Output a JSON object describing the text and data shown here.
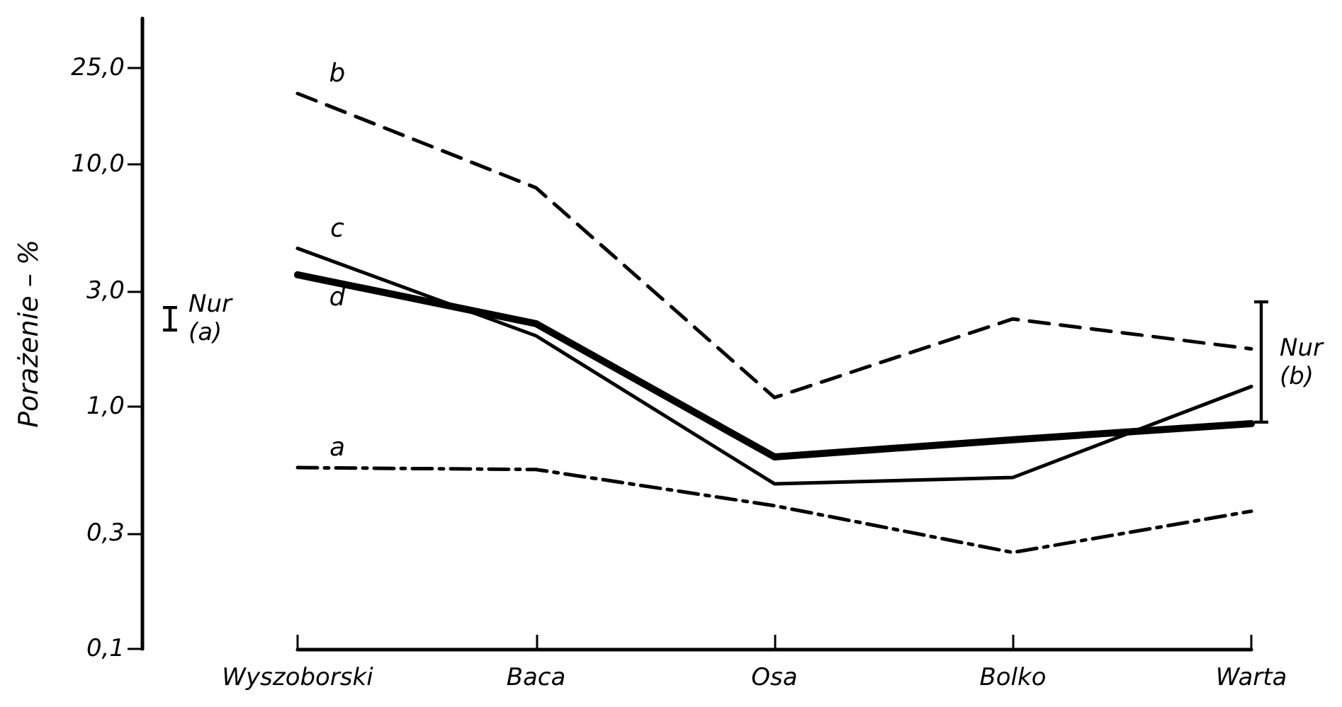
{
  "chart_data": {
    "type": "line",
    "ylabel": "Porażenie – %",
    "categories": [
      "Wyszoborski",
      "Baca",
      "Osa",
      "Bolko",
      "Warta"
    ],
    "series": [
      {
        "name": "a",
        "color": "#000000",
        "line_style": "dotted",
        "values": [
          0.56,
          0.55,
          0.39,
          0.25,
          0.37
        ]
      },
      {
        "name": "b",
        "color": "#000000",
        "line_style": "dashed",
        "values": [
          19.6,
          8.0,
          1.09,
          2.3,
          1.73
        ]
      },
      {
        "name": "c",
        "color": "#000000",
        "line_style": "solid",
        "values": [
          4.5,
          1.96,
          0.48,
          0.51,
          1.21
        ]
      },
      {
        "name": "d",
        "color": "#000000",
        "line_style": "solid",
        "values": [
          3.5,
          2.2,
          0.62,
          0.73,
          0.85
        ]
      }
    ],
    "log": "y",
    "ylim": [
      0.1,
      40
    ],
    "yticks": [
      {
        "value": 0.1,
        "label": "0,1"
      },
      {
        "value": 0.3,
        "label": "0,3"
      },
      {
        "value": 1,
        "label": "1,0"
      },
      {
        "value": 3,
        "label": "3,0"
      },
      {
        "value": 10,
        "label": "10,0"
      },
      {
        "value": 25,
        "label": "25,0"
      }
    ],
    "annotations": [
      "Nur (a)",
      "Nur (b)"
    ],
    "grid": false,
    "legend": false,
    "marker": "none"
  }
}
